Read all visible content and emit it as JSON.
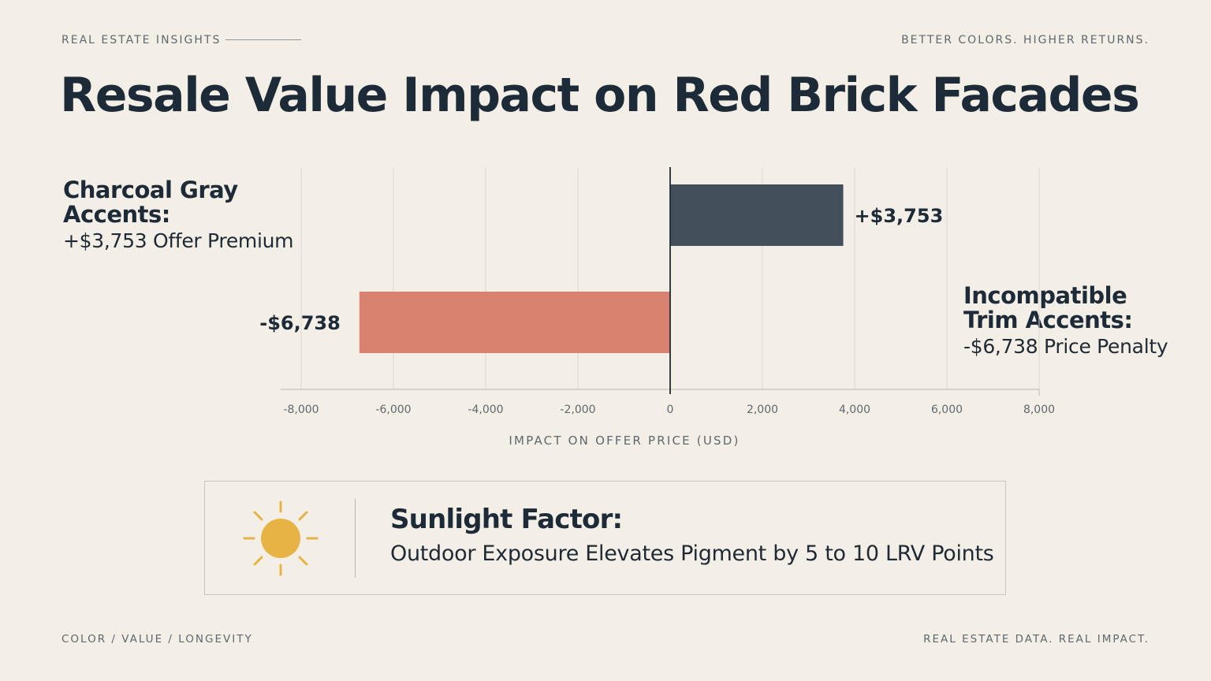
{
  "header": {
    "kicker_left": "REAL ESTATE INSIGHTS",
    "kicker_right": "BETTER COLORS. HIGHER RETURNS.",
    "title": "Resale Value Impact on Red Brick Facades"
  },
  "callouts": {
    "left": {
      "heading": "Charcoal Gray Accents:",
      "sub": "+$3,753 Offer Premium"
    },
    "right": {
      "heading": "Incompatible Trim Accents:",
      "sub": "-$6,738 Price Penalty"
    }
  },
  "chart_data": {
    "type": "bar",
    "orientation": "horizontal",
    "categories": [
      "Charcoal Gray Accents",
      "Incompatible Trim Accents"
    ],
    "values": [
      3753,
      -6738
    ],
    "data_labels": [
      "+$3,753",
      "-$6,738"
    ],
    "colors": [
      "#434f5b",
      "#d98270"
    ],
    "xlabel": "IMPACT ON OFFER PRICE (USD)",
    "xlim": [
      -8000,
      8000
    ],
    "xticks": [
      -8000,
      -6000,
      -4000,
      -2000,
      0,
      2000,
      4000,
      6000,
      8000
    ],
    "xtick_labels": [
      "-8,000",
      "-6,000",
      "-4,000",
      "-2,000",
      "0",
      "2,000",
      "4,000",
      "6,000",
      "8,000"
    ],
    "grid": "vertical"
  },
  "panel": {
    "icon": "sun-icon",
    "heading": "Sunlight Factor:",
    "body": "Outdoor Exposure Elevates Pigment by 5 to 10 LRV Points"
  },
  "footer": {
    "left": "COLOR  /  VALUE  /  LONGEVITY",
    "right": "REAL ESTATE DATA. REAL IMPACT."
  },
  "colors": {
    "background": "#f3efe6",
    "ink": "#1d2a38",
    "positive_bar": "#434f5b",
    "negative_bar": "#d98270",
    "sun": "#e7b345"
  }
}
